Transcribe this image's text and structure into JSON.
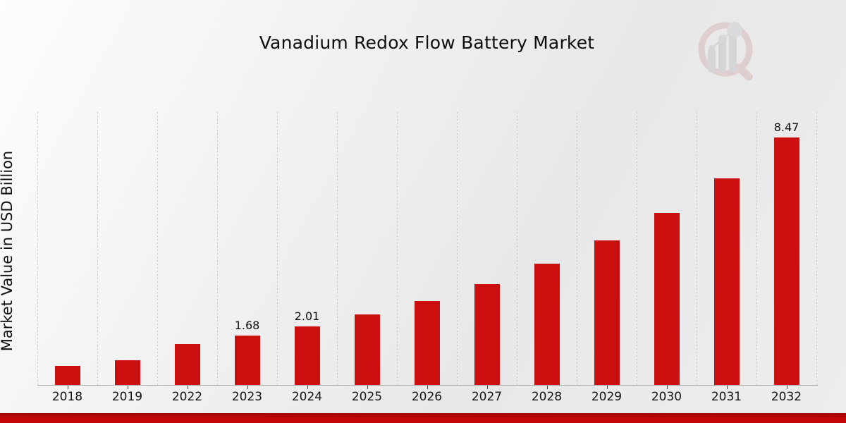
{
  "chart_data": {
    "type": "bar",
    "title": "Vanadium Redox Flow Battery Market",
    "xlabel": "",
    "ylabel": "Market Value in USD Billion",
    "categories": [
      "2018",
      "2019",
      "2022",
      "2023",
      "2024",
      "2025",
      "2026",
      "2027",
      "2028",
      "2029",
      "2030",
      "2031",
      "2032"
    ],
    "values": [
      0.65,
      0.84,
      1.4,
      1.68,
      2.01,
      2.41,
      2.88,
      3.45,
      4.14,
      4.94,
      5.9,
      7.06,
      8.47
    ],
    "value_labels": [
      "",
      "",
      "",
      "1.68",
      "2.01",
      "",
      "",
      "",
      "",
      "",
      "",
      "",
      "8.47"
    ],
    "ylim": [
      0,
      9.34
    ],
    "bar_color": "#cb0e0e",
    "grid": "vertical-dotted",
    "legend_position": "none"
  },
  "footer": {
    "banner_color": "#c30606"
  },
  "watermark": {
    "icon": "magnifier-bar-chart-logo",
    "ring_color": "#cfa3a3",
    "bar_color": "#b7b7bd"
  }
}
